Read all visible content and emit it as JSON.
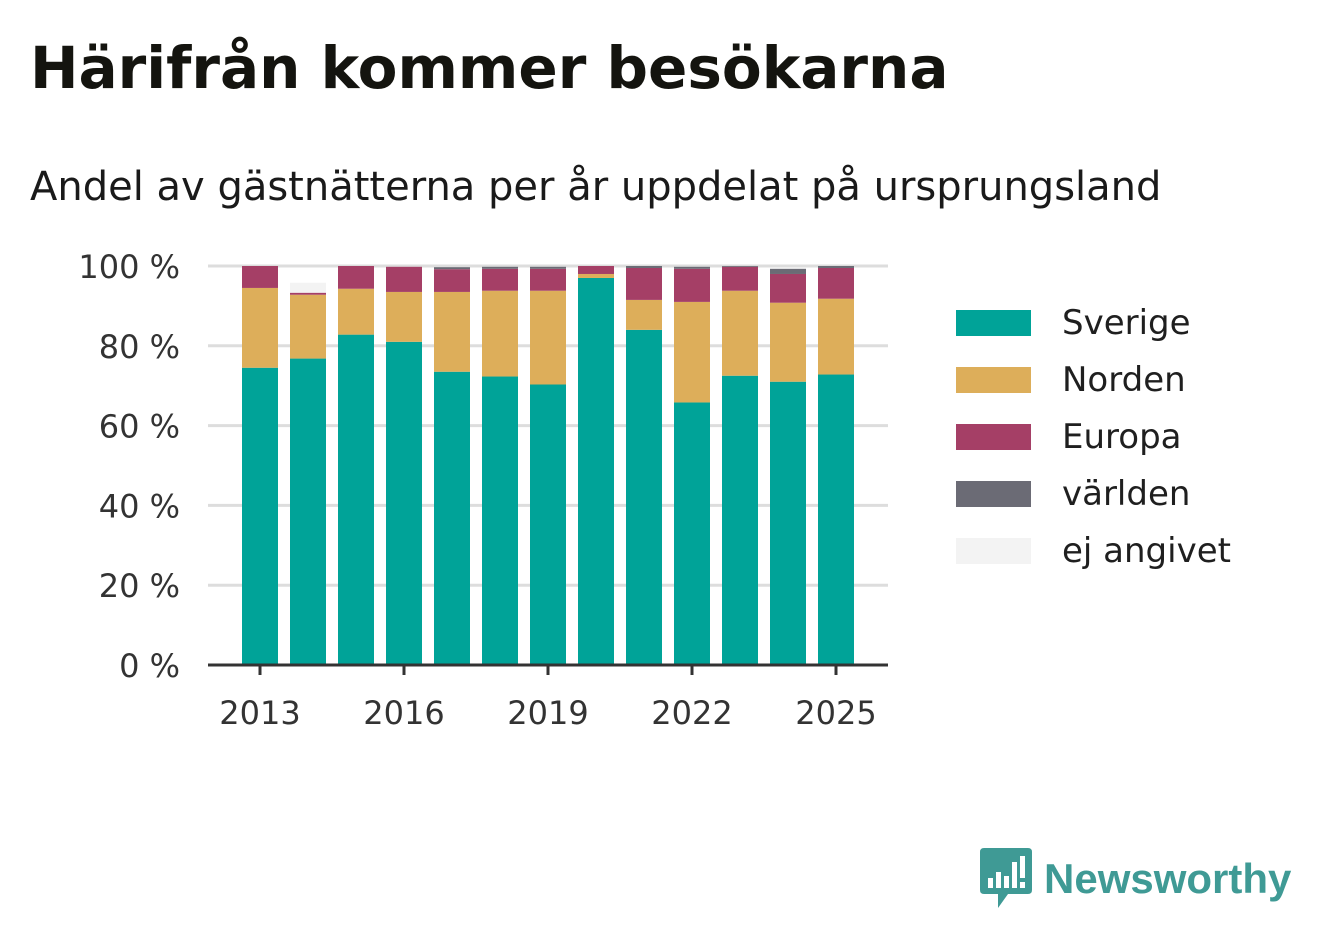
{
  "title": "Härifrån kommer besökarna",
  "subtitle": "Andel av gästnätterna per år uppdelat på ursprungsland",
  "brand": {
    "name": "Newsworthy",
    "color": "#3f9a95",
    "icon": "newsworthy-logo-icon"
  },
  "chart_data": {
    "type": "bar",
    "stacked": true,
    "categories": [
      2013,
      2014,
      2015,
      2016,
      2017,
      2018,
      2019,
      2020,
      2021,
      2022,
      2023,
      2024,
      2025
    ],
    "x_tick_labels": [
      "2013",
      "2016",
      "2019",
      "2022",
      "2025"
    ],
    "y_tick_labels": [
      "0 %",
      "20 %",
      "40 %",
      "60 %",
      "80 %",
      "100 %"
    ],
    "ylim": [
      0,
      100
    ],
    "grid": true,
    "legend_position": "right",
    "series": [
      {
        "name": "Sverige",
        "color": "#00a398",
        "values": [
          74.5,
          76.8,
          82.8,
          81,
          73.5,
          72.3,
          70.3,
          97,
          84,
          65.8,
          72.5,
          71,
          72.8
        ]
      },
      {
        "name": "Norden",
        "color": "#ddae5a",
        "values": [
          20,
          16,
          11.5,
          12.5,
          20,
          21.5,
          23.5,
          1,
          7.5,
          25.2,
          21.3,
          19.8,
          19
        ]
      },
      {
        "name": "Europa",
        "color": "#a53f66",
        "values": [
          5.5,
          0.5,
          5.7,
          6.3,
          5.7,
          5.5,
          5.5,
          2,
          8,
          8.3,
          6,
          7.2,
          7.7
        ]
      },
      {
        "name": "världen",
        "color": "#6b6b75",
        "values": [
          0,
          0,
          0,
          0,
          0.5,
          0.5,
          0.5,
          0,
          0.5,
          0.5,
          0.2,
          1.3,
          0.5
        ]
      },
      {
        "name": "ej angivet",
        "color": "#f3f3f3",
        "values": [
          0,
          2.5,
          0,
          0,
          0,
          0,
          0,
          0,
          0,
          0,
          0,
          0,
          0
        ]
      }
    ]
  }
}
